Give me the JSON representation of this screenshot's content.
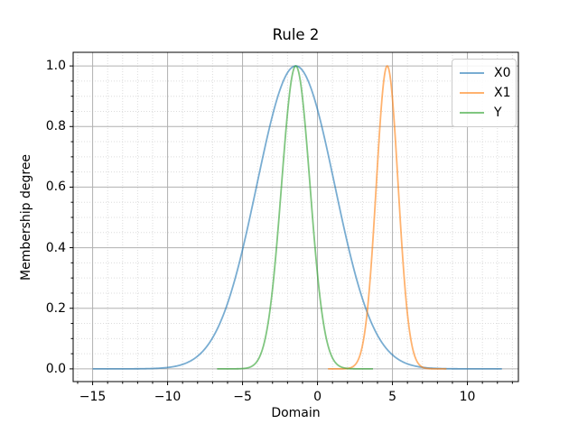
{
  "figure": {
    "title": "Rule 2",
    "xlabel": "Domain",
    "ylabel": "Membership degree",
    "background_color": "#ffffff"
  },
  "chart_data": {
    "type": "line",
    "title": "Rule 2",
    "xlabel": "Domain",
    "ylabel": "Membership degree",
    "xlim": [
      -16.3,
      13.4
    ],
    "ylim": [
      -0.042,
      1.045
    ],
    "xticks": [
      -15,
      -10,
      -5,
      0,
      5,
      10
    ],
    "xtick_labels": [
      "−15",
      "−10",
      "−5",
      "0",
      "5",
      "10"
    ],
    "yticks": [
      0.0,
      0.2,
      0.4,
      0.6,
      0.8,
      1.0
    ],
    "ytick_labels": [
      "0.0",
      "0.2",
      "0.4",
      "0.6",
      "0.8",
      "1.0"
    ],
    "x_minor_step": 1,
    "y_minor_step": 0.05,
    "grid": "both",
    "grid_major_color": "#b0b0b0",
    "grid_minor_color": "#dcdcdc",
    "spine_color": "#000000",
    "legend_position": "upper right",
    "series": [
      {
        "name": "X0",
        "curve": "gaussian",
        "mean": -1.45,
        "sigma": 2.6,
        "peak": 1.0,
        "x_range": [
          -15.0,
          12.3
        ],
        "color": "#1f77b4",
        "alpha": 0.6
      },
      {
        "name": "X1",
        "curve": "gaussian",
        "mean": 4.65,
        "sigma": 0.73,
        "peak": 1.0,
        "x_range": [
          0.7,
          8.6
        ],
        "color": "#ff7f0e",
        "alpha": 0.6
      },
      {
        "name": "Y",
        "curve": "gaussian",
        "mean": -1.45,
        "sigma": 0.95,
        "peak": 1.0,
        "x_range": [
          -6.7,
          3.7
        ],
        "color": "#2ca02c",
        "alpha": 0.6
      }
    ]
  }
}
